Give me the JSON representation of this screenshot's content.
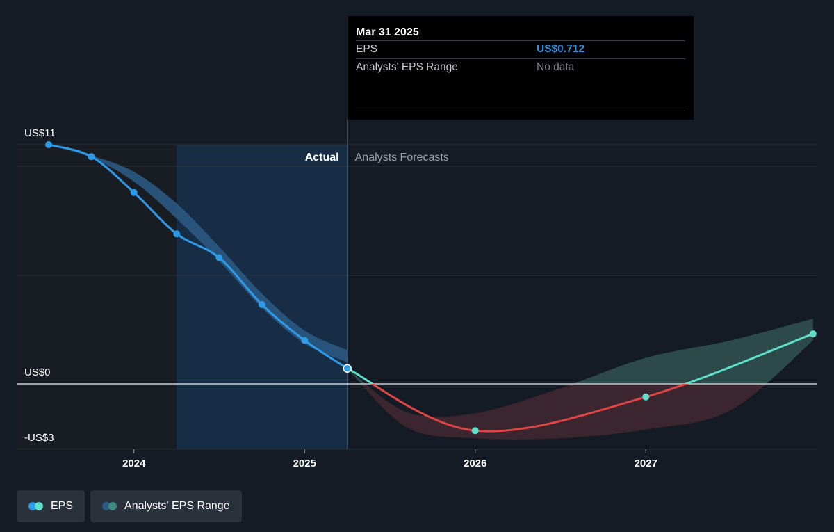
{
  "colors": {
    "background": "#151b24",
    "actual_shade": "#172d45",
    "past_shade": "#181d24",
    "eps_actual": "#2f9be8",
    "eps_forecast_positive": "#5ee0cc",
    "eps_forecast_negative": "#e04545",
    "range_actual": "#2c5c86",
    "range_forecast_positive": "#2e4d4d",
    "range_forecast_negative": "#3d2630",
    "gridline": "#2c323b",
    "zero_line": "#c8cdd4",
    "divider": "#2a5a84"
  },
  "tooltip": {
    "date": "Mar 31 2025",
    "rows": [
      {
        "label": "EPS",
        "value": "US$0.712"
      },
      {
        "label": "Analysts' EPS Range",
        "value": "No data"
      }
    ]
  },
  "legend": {
    "items": [
      {
        "label": "EPS",
        "dot_colors": [
          "#2f9be8",
          "#5ee0cc"
        ]
      },
      {
        "label": "Analysts' EPS Range",
        "dot_colors": [
          "#2c5c86",
          "#3f8a80"
        ]
      }
    ]
  },
  "chart_data": {
    "type": "line",
    "y_tick_labels": [
      {
        "value": 11,
        "label": "US$11"
      },
      {
        "value": 0,
        "label": "US$0"
      },
      {
        "value": -3,
        "label": "-US$3"
      }
    ],
    "x_tick_labels": [
      {
        "value": 2024,
        "label": "2024"
      },
      {
        "value": 2025,
        "label": "2025"
      },
      {
        "value": 2026,
        "label": "2026"
      },
      {
        "value": 2027,
        "label": "2027"
      }
    ],
    "xlim": [
      2023.3,
      2027.98
    ],
    "ylim": [
      -3,
      11
    ],
    "region_labels": {
      "actual": "Actual",
      "forecast": "Analysts Forecasts"
    },
    "actual_region_start": 2024.25,
    "divider_x": 2025.25,
    "series": [
      {
        "name": "EPS",
        "kind": "actual",
        "points": [
          {
            "x": 2023.5,
            "y": 11.0
          },
          {
            "x": 2023.75,
            "y": 10.45
          },
          {
            "x": 2024.0,
            "y": 8.8
          },
          {
            "x": 2024.25,
            "y": 6.9
          },
          {
            "x": 2024.5,
            "y": 5.8
          },
          {
            "x": 2024.75,
            "y": 3.65
          },
          {
            "x": 2025.0,
            "y": 2.0
          },
          {
            "x": 2025.25,
            "y": 0.712
          }
        ]
      },
      {
        "name": "EPS",
        "kind": "forecast",
        "points": [
          {
            "x": 2025.25,
            "y": 0.712
          },
          {
            "x": 2026.0,
            "y": -2.15
          },
          {
            "x": 2027.0,
            "y": -0.6
          },
          {
            "x": 2027.98,
            "y": 2.3
          }
        ]
      }
    ],
    "actual_range_band": {
      "x": [
        2023.5,
        2023.75,
        2024.0,
        2024.25,
        2024.5,
        2024.75,
        2025.0,
        2025.25
      ],
      "upper": [
        11.0,
        10.5,
        9.75,
        8.3,
        6.3,
        4.15,
        2.45,
        1.55
      ],
      "lower": [
        11.0,
        10.4,
        9.3,
        7.6,
        5.65,
        3.5,
        1.85,
        1.0
      ]
    },
    "forecast_range_band": {
      "x": [
        2025.25,
        2025.6,
        2026.0,
        2026.5,
        2027.0,
        2027.5,
        2027.98
      ],
      "upper": [
        0.712,
        -1.3,
        -1.35,
        -0.2,
        1.2,
        2.0,
        3.0
      ],
      "lower": [
        0.712,
        -2.0,
        -2.5,
        -2.5,
        -2.1,
        -1.2,
        2.0
      ]
    }
  }
}
